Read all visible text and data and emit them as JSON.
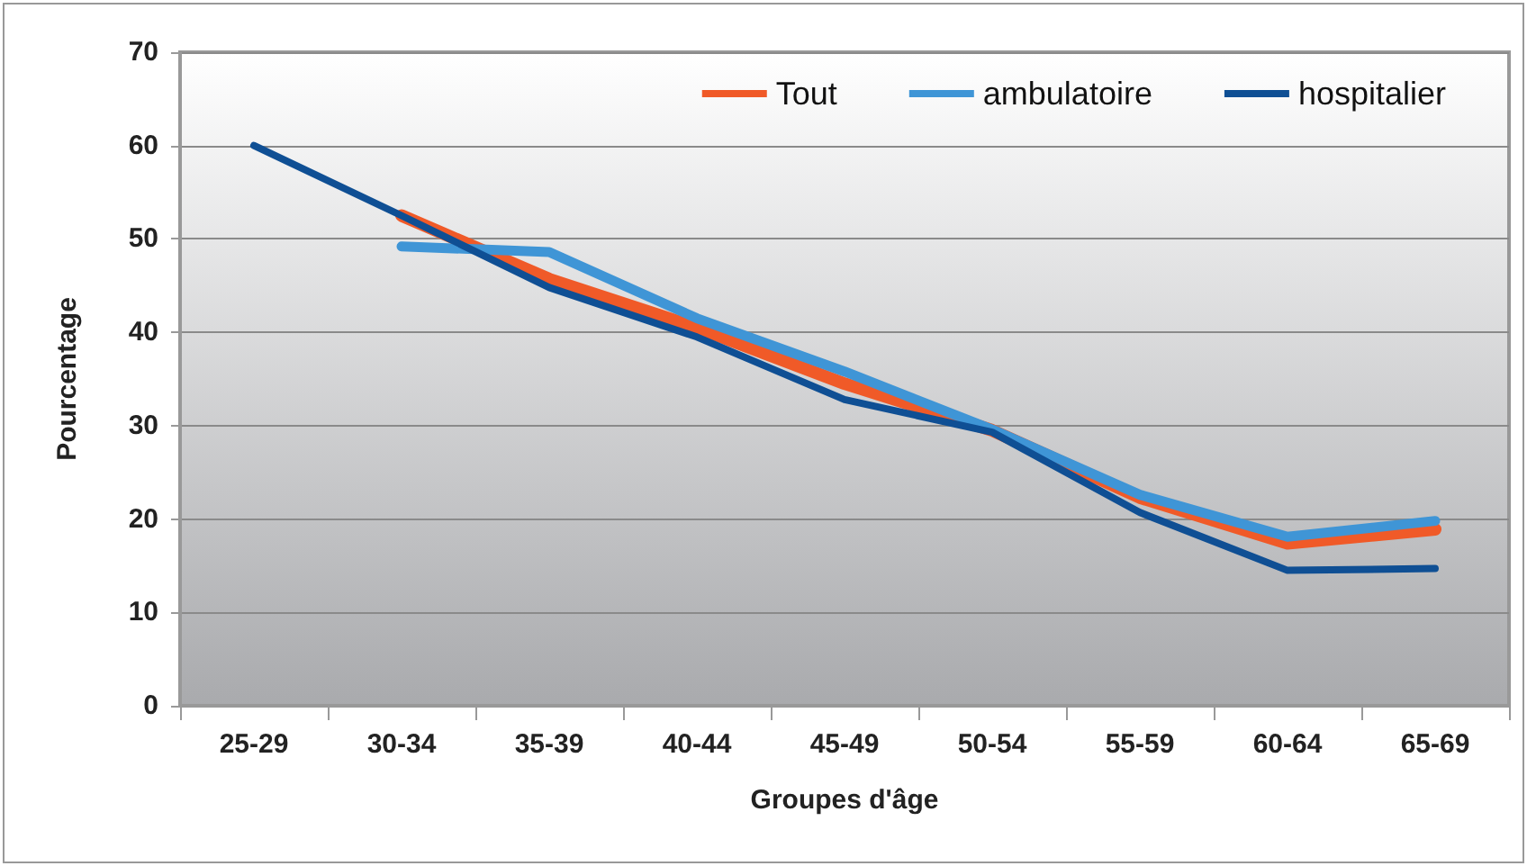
{
  "chart_data": {
    "type": "line",
    "xlabel": "Groupes d'âge",
    "ylabel": "Pourcentage",
    "categories": [
      "25-29",
      "30-34",
      "35-39",
      "40-44",
      "45-49",
      "50-54",
      "55-59",
      "60-64",
      "65-69"
    ],
    "series": [
      {
        "name": "Tout",
        "color": "#f05a28",
        "values": [
          null,
          52.5,
          45.7,
          40.5,
          34.5,
          29.5,
          22.3,
          17.4,
          18.9
        ]
      },
      {
        "name": "ambulatoire",
        "color": "#3f95d6",
        "values": [
          null,
          49.2,
          48.6,
          41.5,
          35.8,
          29.6,
          22.6,
          18.1,
          19.8
        ]
      },
      {
        "name": "hospitalier",
        "color": "#0f4f94",
        "values": [
          60,
          52.5,
          44.8,
          39.5,
          32.8,
          29.3,
          20.7,
          14.5,
          14.7
        ]
      }
    ],
    "ylim": [
      0,
      70
    ],
    "yticks": [
      0,
      10,
      20,
      30,
      40,
      50,
      60,
      70
    ],
    "grid": "y",
    "legend": "top right",
    "marker": "none",
    "line_style": "solid"
  }
}
